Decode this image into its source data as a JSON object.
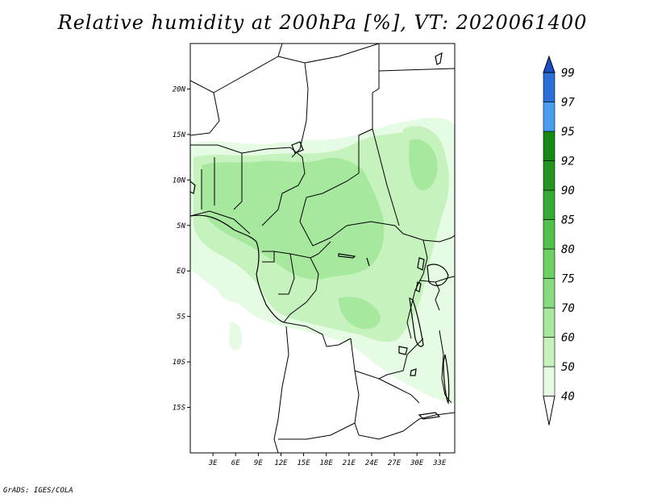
{
  "title": "Relative humidity at 200hPa [%], VT: 2020061400",
  "credit": "GrADS: IGES/COLA",
  "map": {
    "lon_range": [
      0,
      35
    ],
    "lat_range": [
      -20,
      25
    ],
    "lat_ticks": [
      {
        "value": 20,
        "label": "20N"
      },
      {
        "value": 15,
        "label": "15N"
      },
      {
        "value": 10,
        "label": "10N"
      },
      {
        "value": 5,
        "label": "5N"
      },
      {
        "value": 0,
        "label": "EQ"
      },
      {
        "value": -5,
        "label": "5S"
      },
      {
        "value": -10,
        "label": "10S"
      },
      {
        "value": -15,
        "label": "15S"
      }
    ],
    "lon_ticks": [
      {
        "value": 3,
        "label": "3E"
      },
      {
        "value": 6,
        "label": "6E"
      },
      {
        "value": 9,
        "label": "9E"
      },
      {
        "value": 12,
        "label": "12E"
      },
      {
        "value": 15,
        "label": "15E"
      },
      {
        "value": 18,
        "label": "18E"
      },
      {
        "value": 21,
        "label": "21E"
      },
      {
        "value": 24,
        "label": "24E"
      },
      {
        "value": 27,
        "label": "27E"
      },
      {
        "value": 30,
        "label": "30E"
      },
      {
        "value": 33,
        "label": "33E"
      }
    ]
  },
  "colorbar": {
    "levels": [
      {
        "label": "40",
        "color": "#ffffff"
      },
      {
        "label": "50",
        "color": "#e6fbe3"
      },
      {
        "label": "60",
        "color": "#c5f2bd"
      },
      {
        "label": "70",
        "color": "#a6e89e"
      },
      {
        "label": "75",
        "color": "#86dc7d"
      },
      {
        "label": "80",
        "color": "#6bd163"
      },
      {
        "label": "85",
        "color": "#4ec24b"
      },
      {
        "label": "90",
        "color": "#35ac33"
      },
      {
        "label": "92",
        "color": "#22961f"
      },
      {
        "label": "95",
        "color": "#148a12"
      },
      {
        "label": "97",
        "color": "#4a9ef0"
      },
      {
        "label": "99",
        "color": "#2a6fd8"
      }
    ],
    "top_color": "#1a4fc8"
  }
}
